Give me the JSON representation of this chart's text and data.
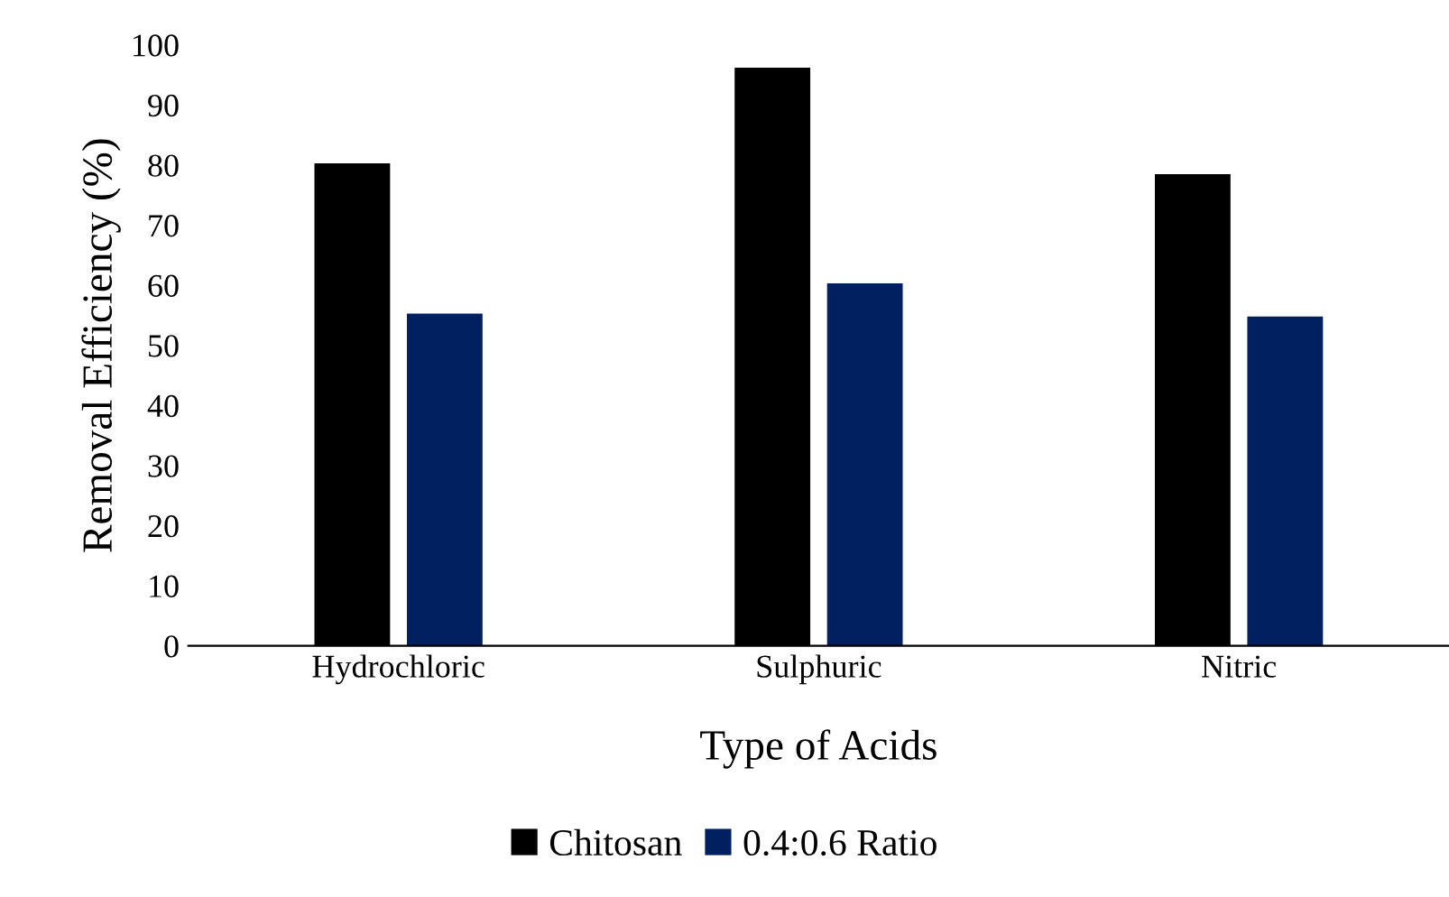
{
  "chart_data": {
    "type": "bar",
    "xlabel": "Type of Acids",
    "ylabel": "Removal Efficiency (%)",
    "categories": [
      "Hydrochloric",
      "Sulphuric",
      "Nitric"
    ],
    "series": [
      {
        "name": "Chitosan",
        "color": "#000000",
        "values": [
          80.3,
          96.2,
          78.5
        ]
      },
      {
        "name": "0.4:0.6 Ratio",
        "color": "#002060",
        "values": [
          55.3,
          60.3,
          54.8
        ]
      }
    ],
    "ylim": [
      0,
      100
    ],
    "yticks": [
      0,
      10,
      20,
      30,
      40,
      50,
      60,
      70,
      80,
      90,
      100
    ],
    "grid": false,
    "legend": "bottom"
  }
}
